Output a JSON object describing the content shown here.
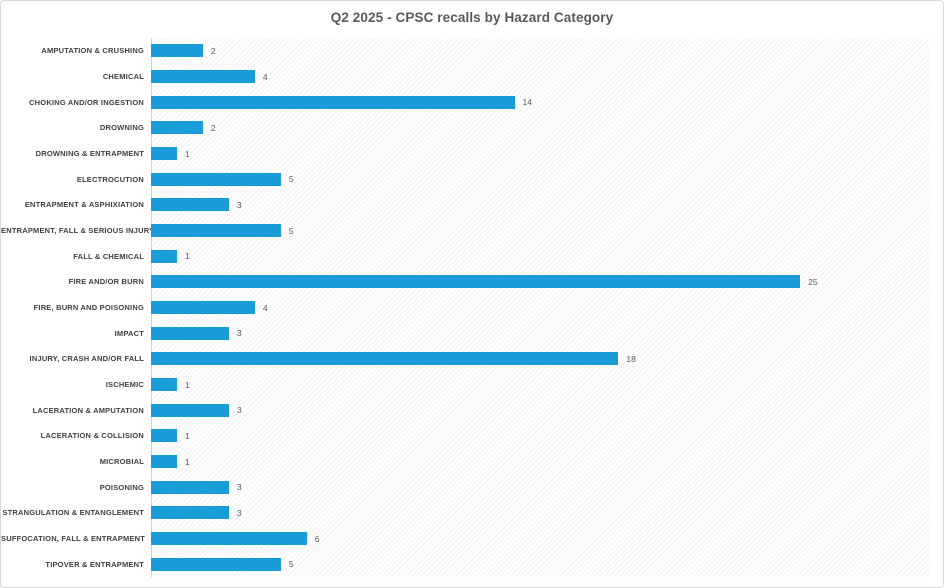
{
  "title": "Q2 2025 - CPSC recalls by Hazard Category",
  "colors": {
    "bar": "#1A9CD8",
    "title_text": "#595959",
    "category_text": "#3F3F3F",
    "value_text": "#595959",
    "chart_border": "#D8D8D8",
    "axis_line": "#D4D4D4",
    "plot_pattern_line": "#ECECEC",
    "background": "#FFFFFF"
  },
  "chart_data": {
    "type": "bar",
    "orientation": "horizontal",
    "title": "Q2 2025 - CPSC recalls by Hazard Category",
    "xlabel": "",
    "ylabel": "",
    "xlim": [
      0,
      30
    ],
    "grid": false,
    "legend": "none",
    "data_labels": true,
    "plot_background": "diagonal-hatch",
    "categories": [
      "AMPUTATION & CRUSHING",
      "CHEMICAL",
      "CHOKING AND/OR INGESTION",
      "DROWNING",
      "DROWNING & ENTRAPMENT",
      "ELECTROCUTION",
      "ENTRAPMENT & ASPHIXIATION",
      "ENTRAPMENT, FALL & SERIOUS INJURY",
      "FALL & CHEMICAL",
      "FIRE AND/OR BURN",
      "FIRE, BURN AND POISONING",
      "IMPACT",
      "INJURY, CRASH AND/OR FALL",
      "ISCHEMIC",
      "LACERATION & AMPUTATION",
      "LACERATION & COLLISION",
      "MICROBIAL",
      "POISONING",
      "STRANGULATION & ENTANGLEMENT",
      "SUFFOCATION, FALL & ENTRAPMENT",
      "TIPOVER & ENTRAPMENT"
    ],
    "values": [
      2,
      4,
      14,
      2,
      1,
      5,
      3,
      5,
      1,
      25,
      4,
      3,
      18,
      1,
      3,
      1,
      1,
      3,
      3,
      6,
      5
    ]
  }
}
